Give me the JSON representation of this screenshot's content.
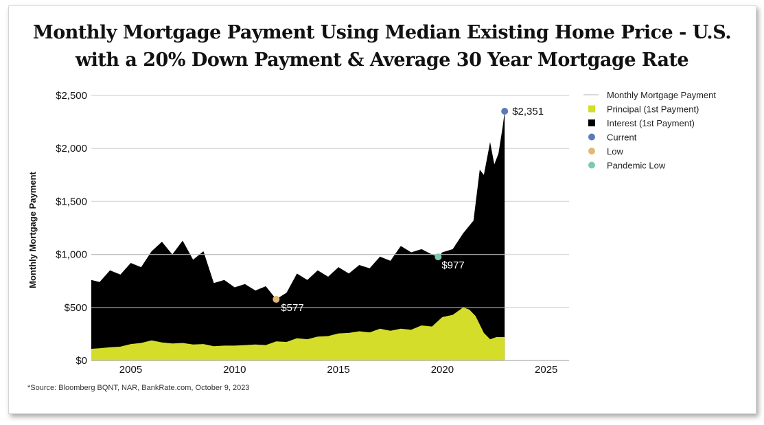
{
  "chart_data": {
    "type": "area",
    "title": "Monthly Mortgage Payment Using Median Existing Home Price - U.S.",
    "subtitle": "with a 20% Down Payment & Average 30 Year Mortgage Rate",
    "ylabel": "Monthly Mortgage Payment",
    "xlabel": "",
    "xlim": [
      2003.1,
      2026.1
    ],
    "ylim": [
      0,
      2500
    ],
    "x_ticks": [
      2005,
      2010,
      2015,
      2020,
      2025
    ],
    "x_tick_labels": [
      "2005",
      "2010",
      "2015",
      "2020",
      "2025"
    ],
    "y_ticks": [
      0,
      500,
      1000,
      1500,
      2000,
      2500
    ],
    "y_tick_labels": [
      "$0",
      "$500",
      "$1,000",
      "$1,500",
      "$2,000",
      "$2,500"
    ],
    "grid": true,
    "legend_position": "right",
    "legend": [
      "Monthly Mortgage Payment",
      "Principal (1st Payment)",
      "Interest (1st Payment)",
      "Current",
      "Low",
      "Pandemic Low"
    ],
    "series": [
      {
        "name": "Monthly Mortgage Payment",
        "color": "#000000",
        "x": [
          2003.1,
          2003.5,
          2004.0,
          2004.5,
          2005.0,
          2005.5,
          2006.0,
          2006.5,
          2007.0,
          2007.5,
          2008.0,
          2008.5,
          2009.0,
          2009.5,
          2010.0,
          2010.5,
          2011.0,
          2011.5,
          2012.0,
          2012.5,
          2013.0,
          2013.5,
          2014.0,
          2014.5,
          2015.0,
          2015.5,
          2016.0,
          2016.5,
          2017.0,
          2017.5,
          2018.0,
          2018.5,
          2019.0,
          2019.5,
          2019.8,
          2020.0,
          2020.5,
          2021.0,
          2021.5,
          2021.8,
          2022.0,
          2022.3,
          2022.5,
          2022.7,
          2022.9,
          2023.0
        ],
        "values": [
          760,
          740,
          850,
          810,
          920,
          880,
          1030,
          1120,
          1000,
          1130,
          950,
          1030,
          730,
          760,
          690,
          720,
          660,
          700,
          577,
          640,
          820,
          760,
          850,
          790,
          880,
          820,
          900,
          870,
          980,
          940,
          1080,
          1020,
          1050,
          1000,
          977,
          1020,
          1050,
          1200,
          1320,
          1800,
          1750,
          2060,
          1850,
          1950,
          2200,
          2351
        ]
      },
      {
        "name": "Principal (1st Payment)",
        "color": "#d4de2a",
        "x": [
          2003.1,
          2003.5,
          2004.0,
          2004.5,
          2005.0,
          2005.5,
          2006.0,
          2006.5,
          2007.0,
          2007.5,
          2008.0,
          2008.5,
          2009.0,
          2009.5,
          2010.0,
          2010.5,
          2011.0,
          2011.5,
          2012.0,
          2012.5,
          2013.0,
          2013.5,
          2014.0,
          2014.5,
          2015.0,
          2015.5,
          2016.0,
          2016.5,
          2017.0,
          2017.5,
          2018.0,
          2018.5,
          2019.0,
          2019.5,
          2020.0,
          2020.5,
          2021.0,
          2021.3,
          2021.6,
          2022.0,
          2022.3,
          2022.6,
          2023.0
        ],
        "values": [
          110,
          115,
          125,
          130,
          155,
          165,
          190,
          170,
          160,
          165,
          150,
          155,
          135,
          140,
          140,
          145,
          150,
          145,
          180,
          175,
          210,
          200,
          225,
          230,
          255,
          260,
          275,
          265,
          300,
          280,
          300,
          290,
          330,
          320,
          410,
          430,
          500,
          480,
          420,
          260,
          200,
          220,
          220
        ]
      }
    ],
    "annotations": [
      {
        "label": "Current",
        "x": 2023.0,
        "y": 2351,
        "text": "$2,351",
        "color": "#5b7bb8"
      },
      {
        "label": "Low",
        "x": 2012.0,
        "y": 577,
        "text": "$577",
        "color": "#e3b871"
      },
      {
        "label": "Pandemic Low",
        "x": 2019.8,
        "y": 977,
        "text": "$977",
        "color": "#7ec9b6"
      }
    ],
    "source": "*Source: Bloomberg BQNT, NAR, BankRate.com, October 9, 2023"
  },
  "colors": {
    "monthly_line": "#d9d9d9",
    "grid": "#dcdcdc",
    "axis": "#9a9a9a",
    "text": "#111111"
  }
}
